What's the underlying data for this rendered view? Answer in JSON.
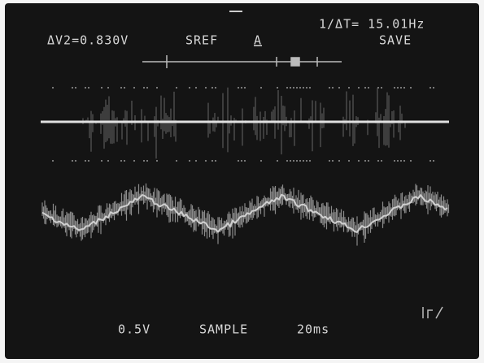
{
  "screen": {
    "readout": {
      "delta_v": "ΔV2=0.830V",
      "reference": "SREF",
      "channel": "A",
      "frequency": "1/ΔT= 15.01Hz",
      "mode": "SAVE"
    },
    "footer": {
      "volts_per_div": "0.5V",
      "acquisition": "SAMPLE",
      "time_per_div": "20ms"
    }
  }
}
